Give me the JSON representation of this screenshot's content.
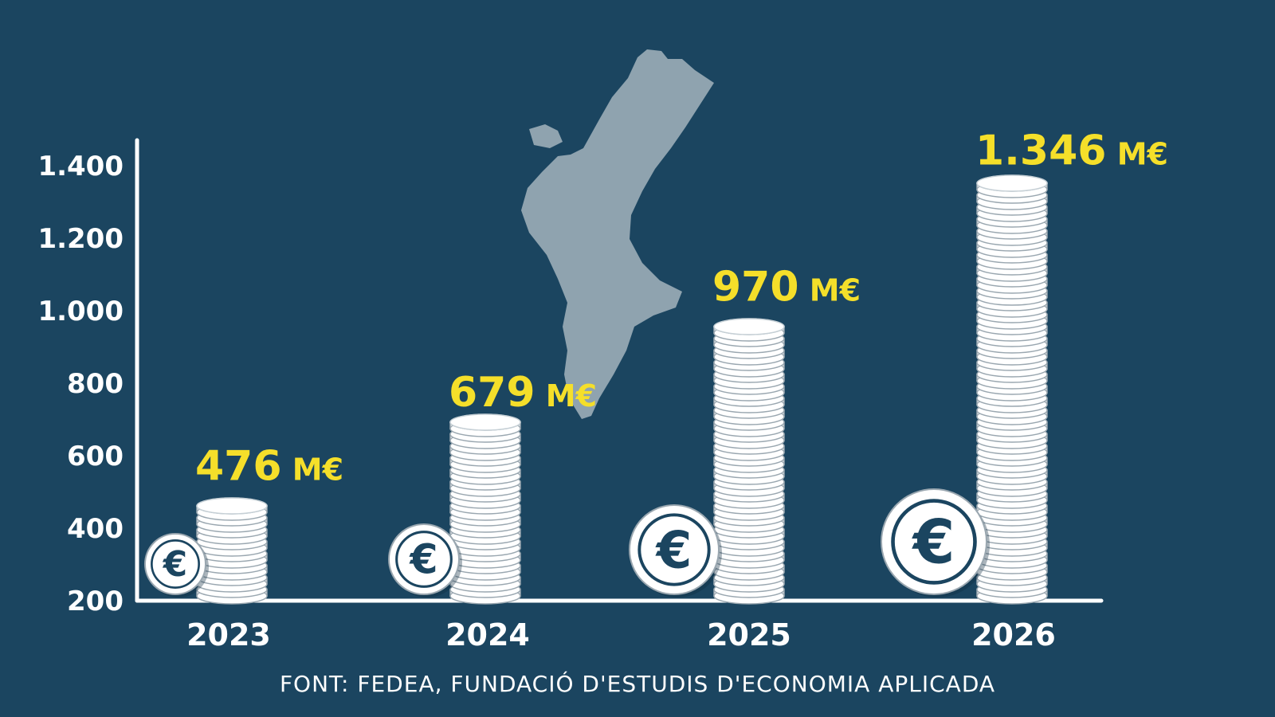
{
  "colors": {
    "background": "#1b4560",
    "axis": "#ffffff",
    "value_label": "#f5df2a",
    "coin": "#ffffff",
    "coin_edge": "#9aa7b0",
    "map": "#8fa3af",
    "euro_symbol": "#1b4560"
  },
  "chart_data": {
    "type": "bar",
    "categories": [
      "2023",
      "2024",
      "2025",
      "2026"
    ],
    "values": [
      476,
      679,
      970,
      1346
    ],
    "value_labels": [
      "476 M€",
      "679 M€",
      "970 M€",
      "1.346 M€"
    ],
    "y_ticks": [
      "1.400",
      "1.200",
      "1.000",
      "800",
      "600",
      "400",
      "200"
    ],
    "ylim": [
      200,
      1400
    ],
    "bar_style": "coin-stacks",
    "decoration": "map-comunitat-valenciana",
    "coin_symbol": "€",
    "grid": false
  },
  "source": "FONT: FEDEA, FUNDACIÓ D'ESTUDIS D'ECONOMIA APLICADA"
}
